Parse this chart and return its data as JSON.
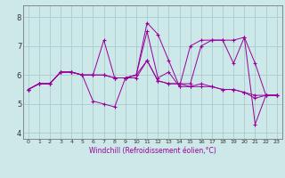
{
  "title": "",
  "xlabel": "Windchill (Refroidissement éolien,°C)",
  "bg_color": "#cce8e8",
  "grid_color": "#aacccc",
  "line_color": "#990099",
  "xlim": [
    -0.5,
    23.5
  ],
  "ylim": [
    3.8,
    8.4
  ],
  "xticks": [
    0,
    1,
    2,
    3,
    4,
    5,
    6,
    7,
    8,
    9,
    10,
    11,
    12,
    13,
    14,
    15,
    16,
    17,
    18,
    19,
    20,
    21,
    22,
    23
  ],
  "yticks": [
    4,
    5,
    6,
    7,
    8
  ],
  "series": [
    [
      5.5,
      5.7,
      5.7,
      6.1,
      6.1,
      6.0,
      5.1,
      5.0,
      4.9,
      5.9,
      6.0,
      7.5,
      5.9,
      6.1,
      5.6,
      5.6,
      5.7,
      5.6,
      5.5,
      5.5,
      5.4,
      5.2,
      5.3,
      5.3
    ],
    [
      5.5,
      5.7,
      5.7,
      6.1,
      6.1,
      6.0,
      6.0,
      7.2,
      5.9,
      5.9,
      6.0,
      7.8,
      7.4,
      6.5,
      5.6,
      7.0,
      7.2,
      7.2,
      7.2,
      6.4,
      7.3,
      4.3,
      5.3,
      5.3
    ],
    [
      5.5,
      5.7,
      5.7,
      6.1,
      6.1,
      6.0,
      6.0,
      6.0,
      5.9,
      5.9,
      6.0,
      6.5,
      5.8,
      5.7,
      5.7,
      5.7,
      7.0,
      7.2,
      7.2,
      7.2,
      7.3,
      6.4,
      5.3,
      5.3
    ],
    [
      5.5,
      5.7,
      5.7,
      6.1,
      6.1,
      6.0,
      6.0,
      6.0,
      5.9,
      5.9,
      5.9,
      6.5,
      5.8,
      5.7,
      5.7,
      5.6,
      5.6,
      5.6,
      5.5,
      5.5,
      5.4,
      5.3,
      5.3,
      5.3
    ]
  ]
}
